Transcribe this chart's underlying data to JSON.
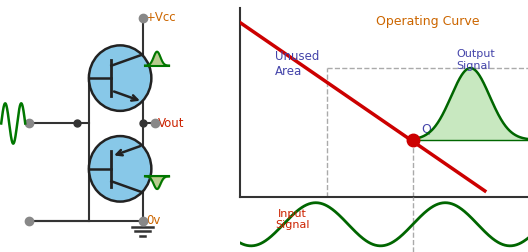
{
  "bg_color": "#ffffff",
  "left_bg": "#ffffff",
  "right_bg": "#ffffff",
  "title": "Operating Curve",
  "title_color": "#cc6600",
  "unused_area_text": "Unused\nArea",
  "unused_area_color": "#4444aa",
  "output_signal_text": "Output\nSignal",
  "output_signal_color": "#4444aa",
  "input_signal_text": "Input\nSignal",
  "input_signal_color": "#cc2200",
  "q_label": "Q",
  "q_color": "#4444aa",
  "q_point_color": "#cc0000",
  "load_line_color": "#cc0000",
  "transistor_fill": "#88c8e8",
  "transistor_edge": "#222222",
  "wire_color": "#333333",
  "sine_green": "#007700",
  "sine_olive": "#88aa44",
  "vcc_label": "+Vcc",
  "vcc_color": "#cc6600",
  "vout_label": "Vout",
  "vout_color": "#cc2200",
  "ov_label": "0v",
  "ov_color": "#cc6600",
  "node_color": "#888888",
  "axis_color": "#333333",
  "dashed_color": "#aaaaaa",
  "bell_fill": "#c8e8c0",
  "bell_line": "#006600"
}
